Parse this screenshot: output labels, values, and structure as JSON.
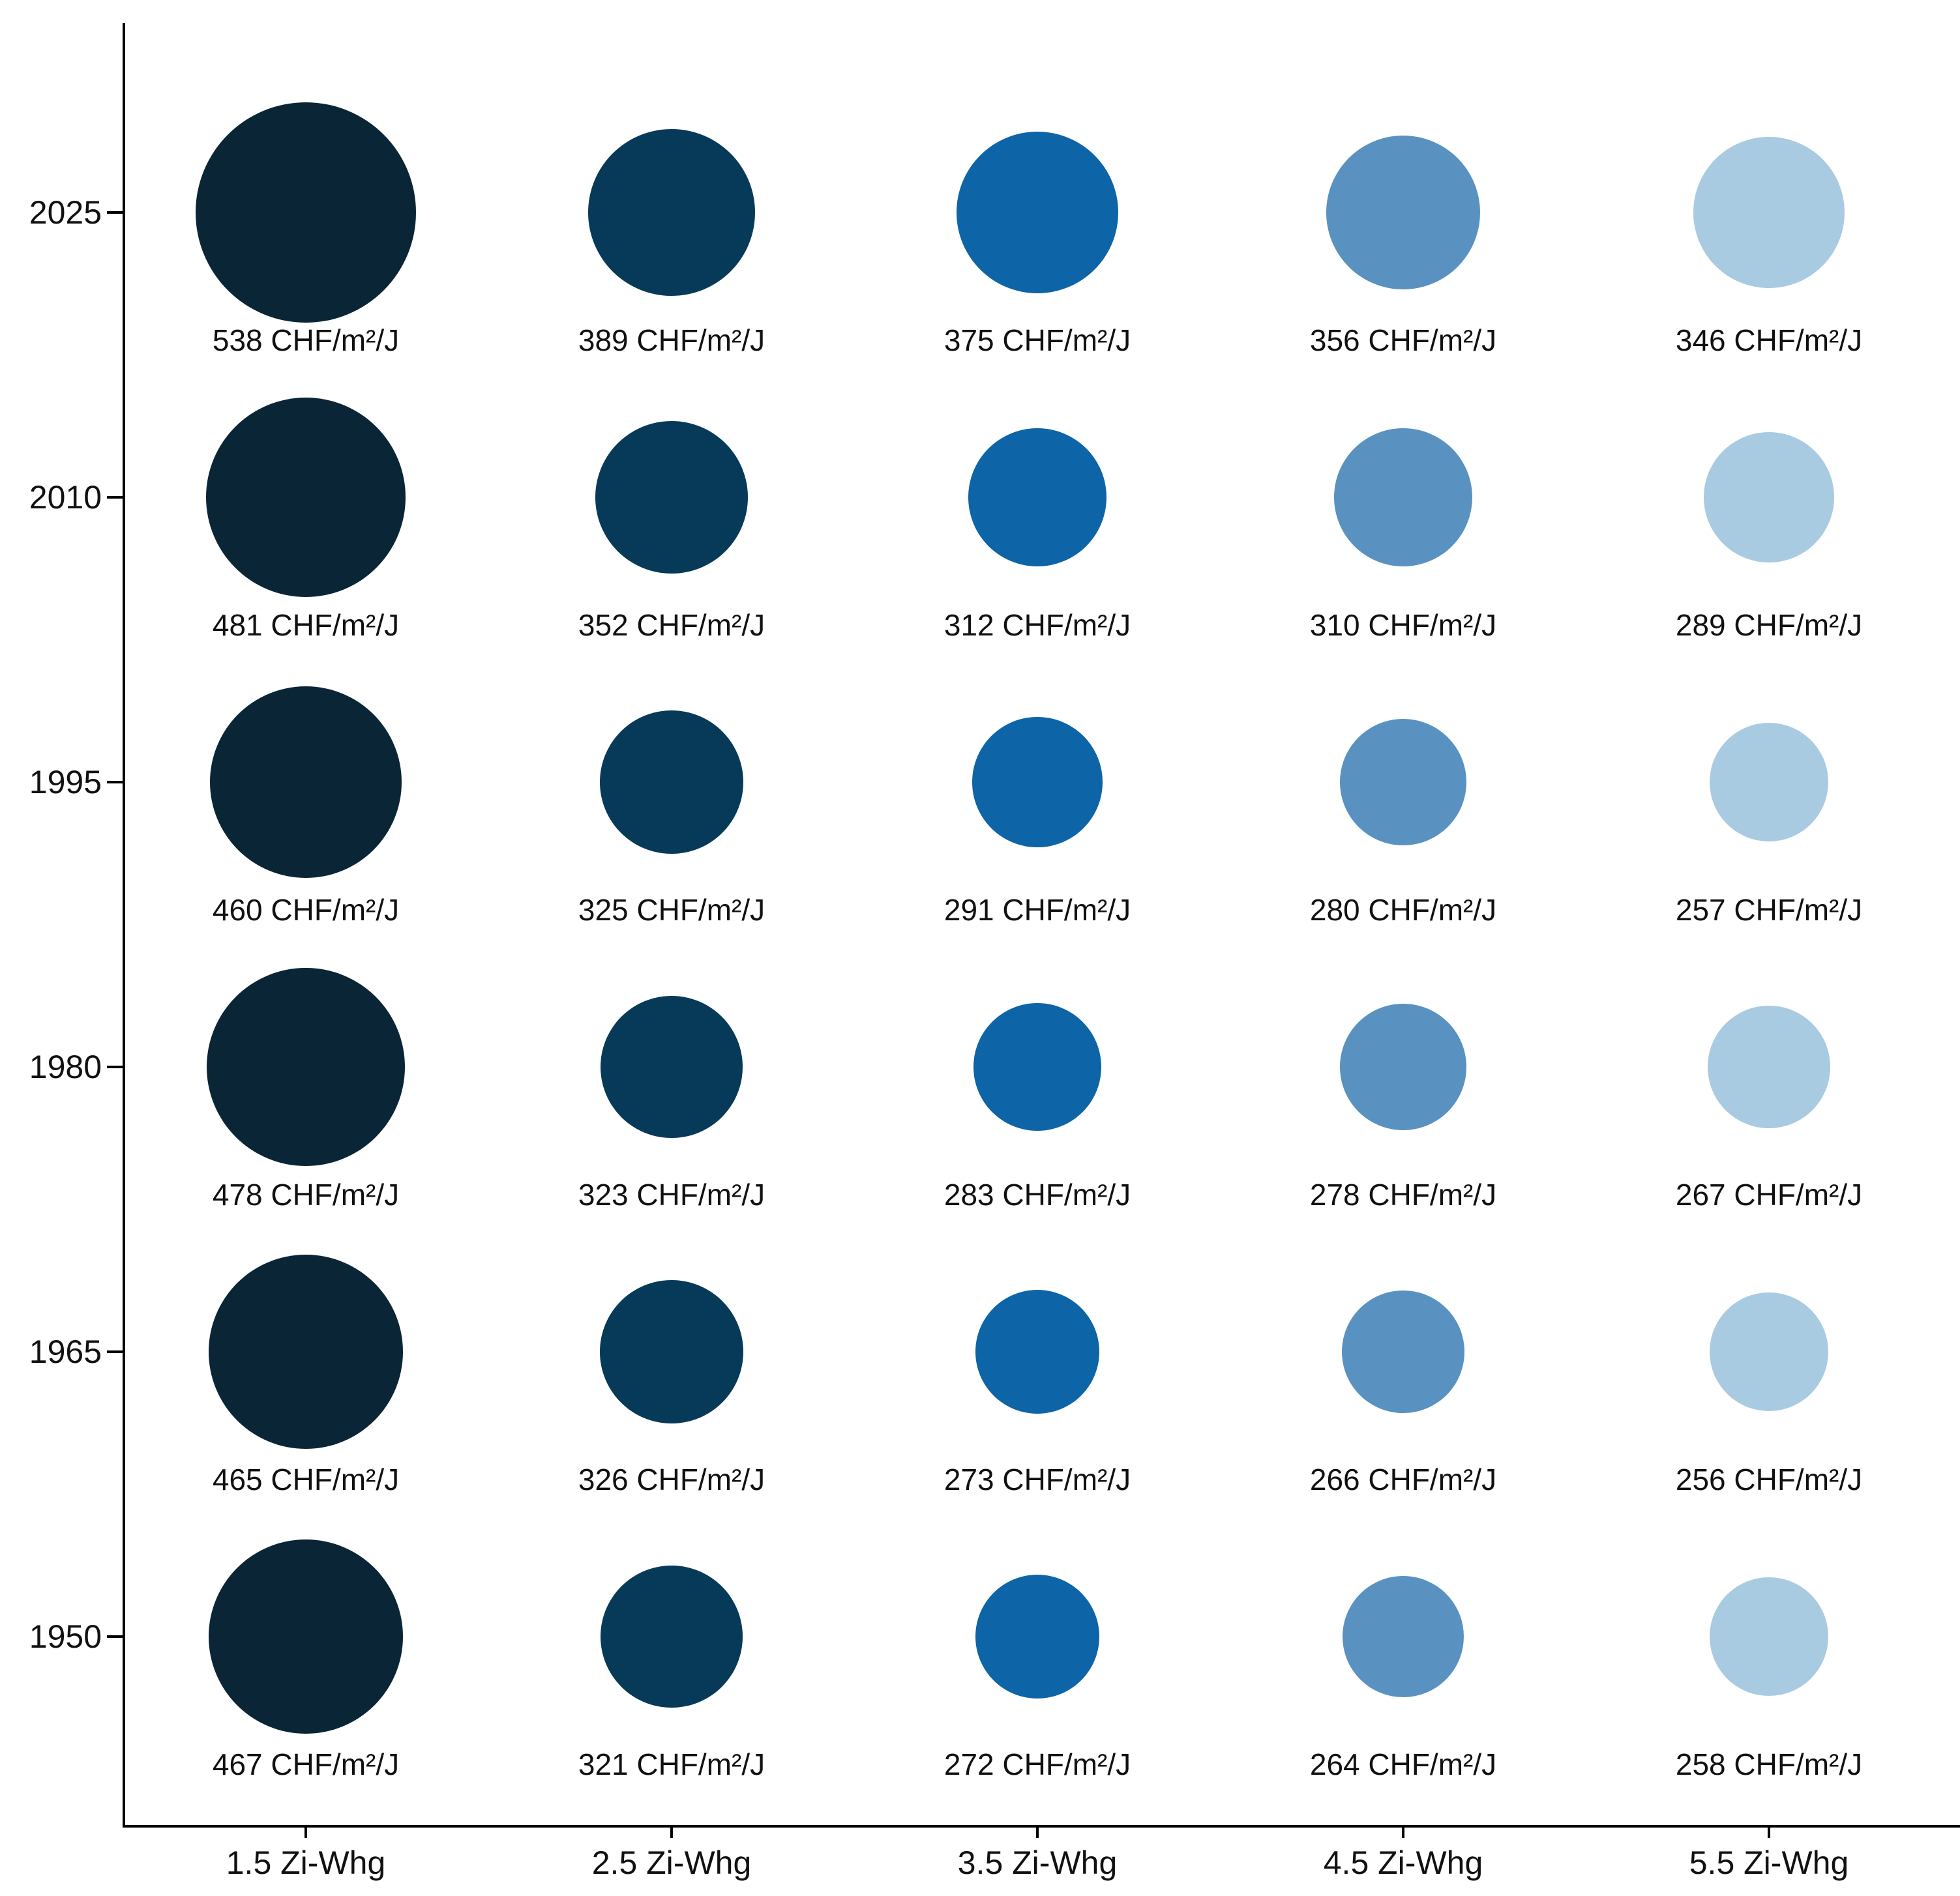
{
  "chart_data": {
    "type": "scatter",
    "subtype": "bubble-matrix",
    "title": "",
    "x_categories": [
      "1.5 Zi-Whg",
      "2.5 Zi-Whg",
      "3.5 Zi-Whg",
      "4.5 Zi-Whg",
      "5.5 Zi-Whg"
    ],
    "y_categories": [
      "2025",
      "2010",
      "1995",
      "1980",
      "1965",
      "1950"
    ],
    "unit_suffix": "CHF/m²/J",
    "series": [
      {
        "y": "2025",
        "values": [
          538,
          389,
          375,
          356,
          346
        ]
      },
      {
        "y": "2010",
        "values": [
          481,
          352,
          312,
          310,
          289
        ]
      },
      {
        "y": "1995",
        "values": [
          460,
          325,
          291,
          280,
          257
        ]
      },
      {
        "y": "1980",
        "values": [
          478,
          323,
          283,
          278,
          267
        ]
      },
      {
        "y": "1965",
        "values": [
          465,
          326,
          273,
          266,
          256
        ]
      },
      {
        "y": "1950",
        "values": [
          467,
          321,
          272,
          264,
          258
        ]
      }
    ],
    "column_colors": [
      "#0a2536",
      "#063a58",
      "#0d64a7",
      "#5992c1",
      "#a9cbe2"
    ],
    "axis_color": "#000000",
    "label_color": "#111111",
    "legend": "none",
    "grid": false,
    "bubble_size_note": "bubble radius increases with value; darkest color = fewest rooms, lightest = most rooms"
  }
}
